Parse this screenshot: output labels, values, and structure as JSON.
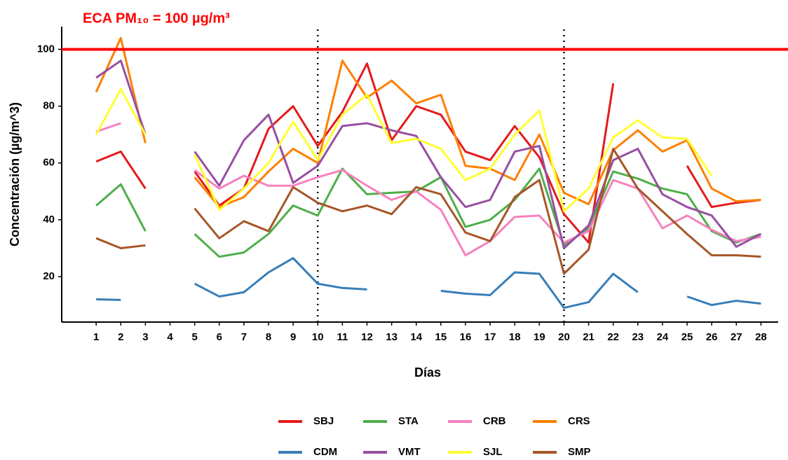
{
  "chart_data": {
    "type": "line",
    "annotation": "ECA PM₁₀ = 100 µg/m³",
    "xlabel": "Días",
    "ylabel": "Concentración (µg/m^3)",
    "x": [
      1,
      2,
      3,
      4,
      5,
      6,
      7,
      8,
      9,
      10,
      11,
      12,
      13,
      14,
      15,
      16,
      17,
      18,
      19,
      20,
      21,
      22,
      23,
      24,
      25,
      26,
      27,
      28
    ],
    "xticks": [
      1,
      2,
      3,
      4,
      5,
      6,
      7,
      8,
      9,
      10,
      11,
      12,
      13,
      14,
      15,
      16,
      17,
      18,
      19,
      20,
      21,
      22,
      23,
      24,
      25,
      26,
      27,
      28
    ],
    "xlim": [
      -0.4,
      28.7
    ],
    "ylim": [
      4,
      108
    ],
    "yticks": [
      20,
      40,
      60,
      80,
      100
    ],
    "reference_line": {
      "y": 100,
      "color": "#ff0000"
    },
    "vlines": [
      10,
      20
    ],
    "series": [
      {
        "name": "SBJ",
        "color": "#e41a1c",
        "values": [
          60.5,
          64,
          51,
          null,
          57,
          45,
          51,
          72,
          80,
          66,
          78,
          95,
          68,
          80,
          77,
          64,
          61,
          73,
          62,
          42,
          32,
          88,
          null,
          null,
          59,
          44.5,
          46,
          47
        ]
      },
      {
        "name": "STA",
        "color": "#4daf4a",
        "values": [
          45,
          52.5,
          36,
          null,
          35,
          27,
          28.5,
          35,
          45,
          41.5,
          58,
          49,
          49.5,
          50,
          55,
          37.5,
          40,
          47,
          58,
          31,
          37,
          57,
          54.5,
          51,
          49,
          36,
          32,
          35
        ]
      },
      {
        "name": "CRB",
        "color": "#f781bf",
        "values": [
          71,
          74,
          null,
          null,
          57.5,
          51,
          55.5,
          52,
          52,
          55,
          57.5,
          52,
          47,
          50,
          43.5,
          27.5,
          32.5,
          41,
          41.5,
          32,
          36,
          54,
          51,
          37,
          41.5,
          36.5,
          32.5,
          34
        ]
      },
      {
        "name": "CRS",
        "color": "#ff7f00",
        "values": [
          85,
          104,
          67,
          null,
          55,
          44.5,
          48,
          57,
          65,
          60,
          96,
          83,
          89,
          81,
          84,
          59,
          58,
          54,
          70,
          49.5,
          45.5,
          64.5,
          71.5,
          64,
          68,
          51,
          46.5,
          47
        ]
      },
      {
        "name": "CDM",
        "color": "#377eb8",
        "values": [
          12,
          11.8,
          null,
          null,
          17.5,
          13,
          14.5,
          21.5,
          26.5,
          17.5,
          16,
          15.5,
          null,
          null,
          15,
          14,
          13.5,
          21.5,
          21,
          9,
          11,
          21,
          14.5,
          null,
          13,
          10,
          11.5,
          10.5
        ]
      },
      {
        "name": "VMT",
        "color": "#984ea3",
        "values": [
          90,
          96,
          70,
          null,
          64,
          52,
          68,
          77,
          53,
          59,
          73,
          74,
          71.5,
          69.5,
          55,
          44.5,
          47,
          64,
          66,
          30,
          38,
          61,
          65,
          49,
          44.5,
          41.5,
          30.5,
          35
        ]
      },
      {
        "name": "SJL",
        "color": "#ffff33",
        "values": [
          70,
          86,
          70,
          null,
          63,
          43.5,
          51,
          60,
          74.5,
          61,
          77,
          84,
          67,
          68.5,
          65,
          54,
          58,
          70,
          78.5,
          43,
          51,
          69,
          75,
          69,
          68.5,
          55.5,
          null,
          null
        ]
      },
      {
        "name": "SMP",
        "color": "#a65628",
        "values": [
          33.5,
          30,
          31,
          null,
          44,
          33.5,
          39.5,
          36,
          51.5,
          46,
          43,
          45,
          42,
          51.5,
          49,
          35.5,
          32.5,
          48,
          54,
          21,
          29.5,
          65,
          51,
          43,
          35,
          27.5,
          27.5,
          27
        ]
      }
    ]
  }
}
